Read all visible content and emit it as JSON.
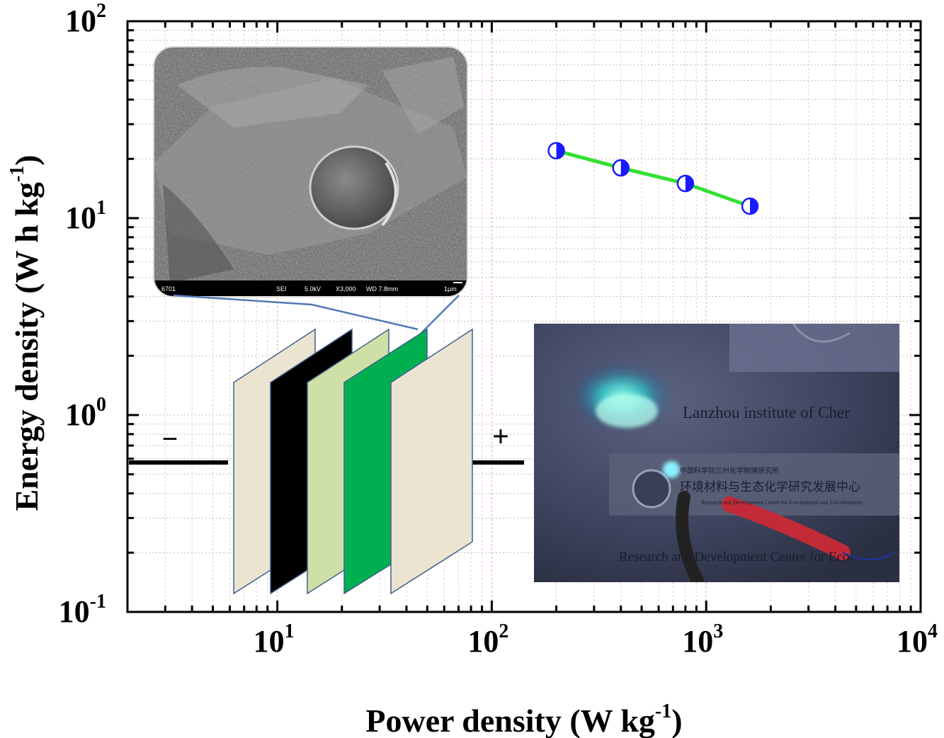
{
  "chart_data": {
    "type": "line",
    "xscale": "log",
    "yscale": "log",
    "xlim": [
      2,
      10000
    ],
    "ylim": [
      0.1,
      100
    ],
    "grid": true,
    "xlabel": {
      "main": "Power density (W kg",
      "sup": "-1",
      "close": ")"
    },
    "ylabel": {
      "main": "Energy density (W h kg",
      "sup": "-1",
      "close": ")"
    },
    "x_ticks": [
      {
        "base": "10",
        "exp": "1"
      },
      {
        "base": "10",
        "exp": "2"
      },
      {
        "base": "10",
        "exp": "3"
      },
      {
        "base": "10",
        "exp": "4"
      }
    ],
    "y_ticks": [
      {
        "base": "10",
        "exp": "-1"
      },
      {
        "base": "10",
        "exp": "0"
      },
      {
        "base": "10",
        "exp": "1"
      },
      {
        "base": "10",
        "exp": "2"
      }
    ],
    "series": [
      {
        "x": [
          200,
          400,
          800,
          1600
        ],
        "y": [
          22,
          18,
          15,
          11.5
        ],
        "line_color": "#33e033",
        "marker_color": "#1a1aff"
      }
    ]
  },
  "insets": {
    "sem_image": {
      "scale_bar": [
        "6701",
        "SEI",
        "5.0kV",
        "X3,000",
        "WD 7.8mm",
        "1μm"
      ]
    },
    "device": {
      "minus": "−",
      "plus": "+",
      "layer_colors": [
        "#ebe4d1",
        "#000000",
        "#cfe0a6",
        "#00b050",
        "#ebe4d1"
      ]
    },
    "photo": {
      "line1": "Lanzhou institute of Cher",
      "line2": "中国科学院兰州化学物理研究所",
      "line3": "环境材料与生态化学研究发展中心",
      "line4": "Research and Development Center for Eco-material and Eco-chemistry",
      "line5": "Research and Development Center for Eco-"
    }
  }
}
